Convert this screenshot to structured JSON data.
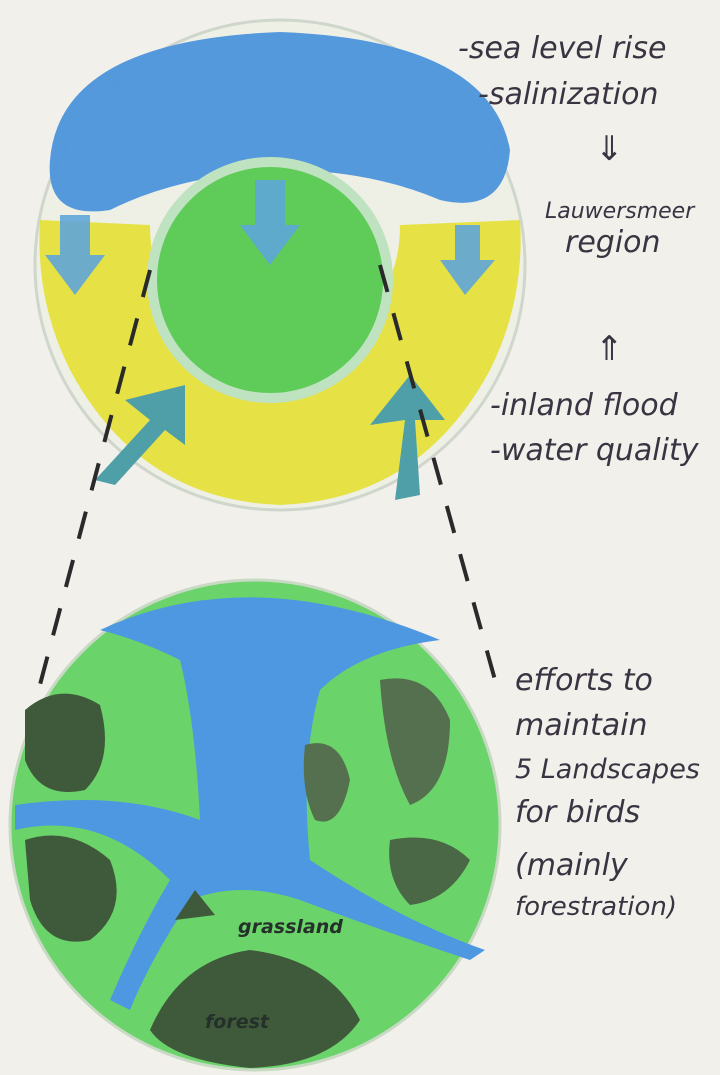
{
  "top_diagram": {
    "sea_threats": [
      "-sea level rise",
      "-salinization"
    ],
    "center": [
      "Lauwersmeer",
      "region"
    ],
    "inland_threats": [
      "-inland flood",
      "-water quality"
    ]
  },
  "bottom_diagram": {
    "notes": [
      "efforts to",
      "maintain",
      "5 Landscapes",
      "for birds",
      "(mainly",
      "forestration)"
    ],
    "grassland": "grassland",
    "forest": "forest"
  }
}
